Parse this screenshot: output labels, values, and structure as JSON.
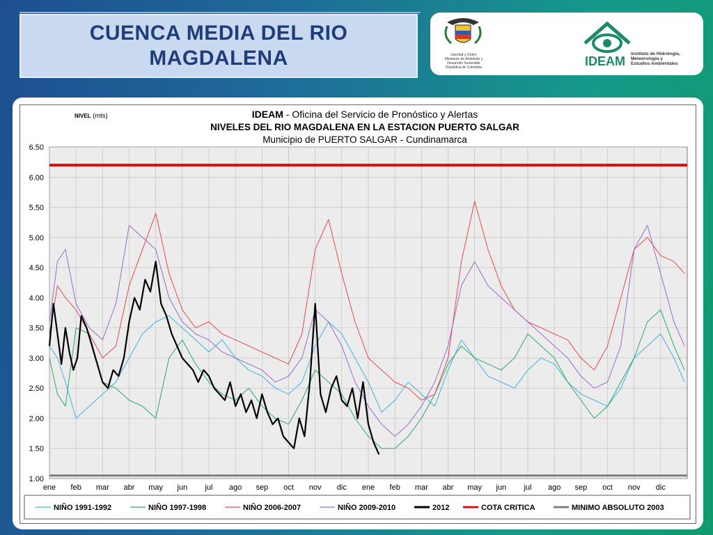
{
  "slide": {
    "title": "CUENCA MEDIA DEL RIO MAGDALENA",
    "logo_left_lines": [
      "Libertad y Orden",
      "Ministerio de Ambiente y",
      "Desarrollo Sostenible",
      "República de Colombia"
    ],
    "logo_right_name": "IDEAM",
    "logo_right_lines": [
      "Instituto de Hidrología,",
      "Meteorología y",
      "Estudios Ambientales"
    ]
  },
  "colors": {
    "n1991": "#3cb4dc",
    "n1997": "#2aa86a",
    "n2006": "#e84848",
    "n2009": "#9a6ac8",
    "y2012": "#000000",
    "cota": "#e01010",
    "minimo": "#808080"
  },
  "chart_data": {
    "type": "line",
    "ylabel_prefix": "NIVEL",
    "ylabel_unit": "(mts)",
    "title_prefix": "IDEAM",
    "title_rest": " - Oficina del Servicio de Pronóstico y Alertas",
    "subtitle": "NIVELES DEL RIO MAGDALENA EN LA ESTACION PUERTO SALGAR",
    "subtitle2": "Municipio de PUERTO SALGAR - Cundinamarca",
    "yticks": [
      "6.50",
      "6.00",
      "5.50",
      "5.00",
      "4.50",
      "4.00",
      "3.50",
      "3.00",
      "2.50",
      "2.00",
      "1.50",
      "1.00"
    ],
    "ylim": [
      1.0,
      6.5
    ],
    "xticks": [
      "ene",
      "feb",
      "mar",
      "abr",
      "may",
      "jun",
      "jul",
      "ago",
      "sep",
      "oct",
      "nov",
      "dic",
      "ene",
      "feb",
      "mar",
      "abr",
      "may",
      "jun",
      "jul",
      "ago",
      "sep",
      "oct",
      "nov",
      "dic"
    ],
    "xlim_months": [
      0,
      24
    ],
    "grid": true,
    "legend_position": "bottom",
    "cota_critica": 6.2,
    "minimo_absoluto": 1.05,
    "series": [
      {
        "name": "NIÑO 1991-1992",
        "key": "n1991",
        "x": [
          0,
          0.3,
          0.6,
          1.0,
          1.5,
          2.0,
          2.5,
          3.0,
          3.5,
          4.0,
          4.5,
          5.0,
          5.5,
          6.0,
          6.5,
          7.0,
          7.5,
          8.0,
          8.5,
          9.0,
          9.5,
          10.0,
          10.5,
          11.0,
          11.5,
          12.0,
          12.5,
          13.0,
          13.5,
          14.0,
          14.5,
          15.0,
          15.5,
          16.0,
          16.5,
          17.0,
          17.5,
          18.0,
          18.5,
          19.0,
          19.5,
          20.0,
          20.5,
          21.0,
          21.5,
          22.0,
          22.5,
          23.0,
          23.5,
          23.9
        ],
        "y": [
          3.2,
          3.0,
          2.6,
          2.0,
          2.2,
          2.4,
          2.6,
          3.0,
          3.4,
          3.6,
          3.7,
          3.5,
          3.3,
          3.1,
          3.3,
          3.0,
          2.8,
          2.7,
          2.5,
          2.4,
          2.6,
          3.2,
          3.6,
          3.4,
          3.0,
          2.6,
          2.1,
          2.3,
          2.6,
          2.4,
          2.2,
          2.8,
          3.3,
          3.0,
          2.7,
          2.6,
          2.5,
          2.8,
          3.0,
          2.9,
          2.6,
          2.4,
          2.3,
          2.2,
          2.5,
          3.0,
          3.2,
          3.4,
          3.0,
          2.6
        ]
      },
      {
        "name": "NIÑO 1997-1998",
        "key": "n1997",
        "x": [
          0,
          0.3,
          0.6,
          1.0,
          1.5,
          2.0,
          2.5,
          3.0,
          3.5,
          4.0,
          4.5,
          5.0,
          5.5,
          6.0,
          6.5,
          7.0,
          7.5,
          8.0,
          8.5,
          9.0,
          9.5,
          10.0,
          10.5,
          11.0,
          11.5,
          12.0,
          12.5,
          13.0,
          13.5,
          14.0,
          14.5,
          15.0,
          15.5,
          16.0,
          16.5,
          17.0,
          17.5,
          18.0,
          18.5,
          19.0,
          19.5,
          20.0,
          20.5,
          21.0,
          21.5,
          22.0,
          22.5,
          23.0,
          23.5,
          23.9
        ],
        "y": [
          3.0,
          2.4,
          2.2,
          3.5,
          3.4,
          2.6,
          2.5,
          2.3,
          2.2,
          2.0,
          3.0,
          3.3,
          2.9,
          2.6,
          2.4,
          2.3,
          2.5,
          2.2,
          2.0,
          1.9,
          2.3,
          2.8,
          2.6,
          2.4,
          2.0,
          1.7,
          1.5,
          1.5,
          1.7,
          2.0,
          2.4,
          2.9,
          3.2,
          3.0,
          2.9,
          2.8,
          3.0,
          3.4,
          3.2,
          3.0,
          2.6,
          2.3,
          2.0,
          2.2,
          2.6,
          3.0,
          3.6,
          3.8,
          3.2,
          2.8
        ]
      },
      {
        "name": "NIÑO 2006-2007",
        "key": "n2006",
        "x": [
          0,
          0.3,
          0.6,
          1.0,
          1.5,
          2.0,
          2.5,
          3.0,
          3.5,
          4.0,
          4.5,
          5.0,
          5.5,
          6.0,
          6.5,
          7.0,
          7.5,
          8.0,
          8.5,
          9.0,
          9.5,
          10.0,
          10.5,
          11.0,
          11.5,
          12.0,
          12.5,
          13.0,
          13.5,
          14.0,
          14.5,
          15.0,
          15.5,
          16.0,
          16.5,
          17.0,
          17.5,
          18.0,
          18.5,
          19.0,
          19.5,
          20.0,
          20.5,
          21.0,
          21.5,
          22.0,
          22.5,
          23.0,
          23.5,
          23.9
        ],
        "y": [
          3.4,
          4.2,
          4.0,
          3.8,
          3.4,
          3.0,
          3.2,
          4.2,
          4.8,
          5.4,
          4.4,
          3.8,
          3.5,
          3.6,
          3.4,
          3.3,
          3.2,
          3.1,
          3.0,
          2.9,
          3.4,
          4.8,
          5.3,
          4.4,
          3.6,
          3.0,
          2.8,
          2.6,
          2.5,
          2.3,
          2.4,
          3.0,
          4.6,
          5.6,
          4.8,
          4.2,
          3.8,
          3.6,
          3.5,
          3.4,
          3.3,
          3.0,
          2.8,
          3.2,
          4.0,
          4.8,
          5.0,
          4.7,
          4.6,
          4.4
        ]
      },
      {
        "name": "NIÑO 2009-2010",
        "key": "n2009",
        "x": [
          0,
          0.3,
          0.6,
          1.0,
          1.5,
          2.0,
          2.5,
          3.0,
          3.5,
          4.0,
          4.5,
          5.0,
          5.5,
          6.0,
          6.5,
          7.0,
          7.5,
          8.0,
          8.5,
          9.0,
          9.5,
          10.0,
          10.5,
          11.0,
          11.5,
          12.0,
          12.5,
          13.0,
          13.5,
          14.0,
          14.5,
          15.0,
          15.5,
          16.0,
          16.5,
          17.0,
          17.5,
          18.0,
          18.5,
          19.0,
          19.5,
          20.0,
          20.5,
          21.0,
          21.5,
          22.0,
          22.5,
          23.0,
          23.5,
          23.9
        ],
        "y": [
          3.6,
          4.6,
          4.8,
          3.9,
          3.5,
          3.3,
          3.9,
          5.2,
          5.0,
          4.8,
          4.0,
          3.6,
          3.4,
          3.3,
          3.1,
          3.0,
          2.9,
          2.8,
          2.6,
          2.7,
          3.0,
          3.8,
          3.6,
          3.2,
          2.6,
          2.2,
          1.9,
          1.7,
          1.9,
          2.2,
          2.6,
          3.2,
          4.2,
          4.6,
          4.2,
          4.0,
          3.8,
          3.6,
          3.4,
          3.2,
          3.0,
          2.7,
          2.5,
          2.6,
          3.2,
          4.8,
          5.2,
          4.4,
          3.6,
          3.2
        ]
      },
      {
        "name": "2012",
        "key": "y2012",
        "x": [
          0,
          0.15,
          0.3,
          0.45,
          0.6,
          0.75,
          0.9,
          1.05,
          1.2,
          1.4,
          1.6,
          1.8,
          2.0,
          2.2,
          2.4,
          2.6,
          2.8,
          3.0,
          3.2,
          3.4,
          3.6,
          3.8,
          4.0,
          4.2,
          4.4,
          4.6,
          4.8,
          5.0,
          5.2,
          5.4,
          5.6,
          5.8,
          6.0,
          6.2,
          6.4,
          6.6,
          6.8,
          7.0,
          7.2,
          7.4,
          7.6,
          7.8,
          8.0,
          8.2,
          8.4,
          8.6,
          8.8,
          9.0,
          9.2,
          9.4,
          9.6,
          9.8,
          10.0,
          10.2,
          10.4,
          10.6,
          10.8,
          11.0,
          11.2,
          11.4,
          11.6,
          11.8,
          12.0,
          12.2,
          12.4
        ],
        "y": [
          3.2,
          3.9,
          3.4,
          2.9,
          3.5,
          3.1,
          2.8,
          3.0,
          3.7,
          3.5,
          3.2,
          2.9,
          2.6,
          2.5,
          2.8,
          2.7,
          3.0,
          3.6,
          4.0,
          3.8,
          4.3,
          4.1,
          4.6,
          3.9,
          3.7,
          3.4,
          3.2,
          3.0,
          2.9,
          2.8,
          2.6,
          2.8,
          2.7,
          2.5,
          2.4,
          2.3,
          2.6,
          2.2,
          2.4,
          2.1,
          2.3,
          2.0,
          2.4,
          2.1,
          1.9,
          2.0,
          1.7,
          1.6,
          1.5,
          2.0,
          1.7,
          2.6,
          3.9,
          2.4,
          2.1,
          2.5,
          2.7,
          2.3,
          2.2,
          2.5,
          2.0,
          2.6,
          1.9,
          1.6,
          1.4
        ]
      }
    ]
  },
  "legend": [
    {
      "label": "NIÑO 1991-1992",
      "key": "n1991",
      "thick": false
    },
    {
      "label": "NIÑO 1997-1998",
      "key": "n1997",
      "thick": false
    },
    {
      "label": "NIÑO 2006-2007",
      "key": "n2006",
      "thick": false
    },
    {
      "label": "NIÑO 2009-2010",
      "key": "n2009",
      "thick": false
    },
    {
      "label": "2012",
      "key": "y2012",
      "thick": true
    },
    {
      "label": "COTA CRITICA",
      "key": "cota",
      "thick": true
    },
    {
      "label": "MINIMO ABSOLUTO 2003",
      "key": "minimo",
      "thick": true
    }
  ]
}
